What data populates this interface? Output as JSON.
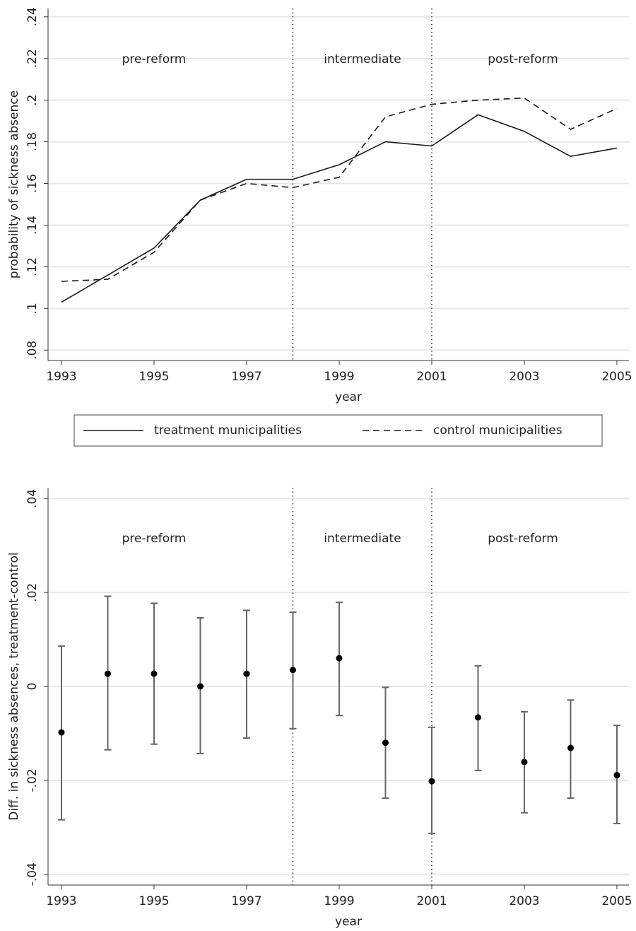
{
  "chart_data": [
    {
      "type": "line",
      "x_label": "year",
      "y_label": "probability of sickness absence",
      "x": [
        1993,
        1994,
        1995,
        1996,
        1997,
        1998,
        1999,
        2000,
        2001,
        2002,
        2003,
        2004,
        2005
      ],
      "series": [
        {
          "name": "treatment municipalities",
          "color": "#1a1a1a",
          "linestyle": "solid",
          "values": [
            0.103,
            0.116,
            0.129,
            0.152,
            0.162,
            0.162,
            0.169,
            0.18,
            0.178,
            0.193,
            0.185,
            0.173,
            0.177
          ]
        },
        {
          "name": "control municipalities",
          "color": "#1a1a1a",
          "linestyle": "dashed",
          "values": [
            0.113,
            0.114,
            0.127,
            0.152,
            0.16,
            0.158,
            0.163,
            0.192,
            0.198,
            0.2,
            0.201,
            0.186,
            0.196
          ]
        }
      ],
      "xlim": [
        1992.71,
        2005.26
      ],
      "xticks": [
        1993,
        1995,
        1997,
        1999,
        2001,
        2003,
        2005
      ],
      "ylim": [
        0.075,
        0.244
      ],
      "yticks": [
        {
          "value": 0.08,
          "label": ".08"
        },
        {
          "value": 0.1,
          "label": ".1"
        },
        {
          "value": 0.12,
          "label": ".12"
        },
        {
          "value": 0.14,
          "label": ".14"
        },
        {
          "value": 0.16,
          "label": ".16"
        },
        {
          "value": 0.18,
          "label": ".18"
        },
        {
          "value": 0.2,
          "label": ".2"
        },
        {
          "value": 0.22,
          "label": ".22"
        },
        {
          "value": 0.24,
          "label": ".24"
        }
      ],
      "vlines": [
        1998,
        2001
      ],
      "annotations": [
        "pre-reform",
        "intermediate",
        "post-reform"
      ],
      "grid": true,
      "legend": "bottom"
    },
    {
      "type": "errorbar",
      "x_label": "year",
      "y_label": "Diff. in sickness absences, treatment-control",
      "x": [
        1993,
        1994,
        1995,
        1996,
        1997,
        1998,
        1999,
        2000,
        2001,
        2002,
        2003,
        2004,
        2005
      ],
      "color": "#000000",
      "bar_color": "#666666",
      "values": [
        -0.0098,
        0.0027,
        0.0027,
        0,
        0.0027,
        0.0035,
        0.006,
        -0.012,
        -0.0202,
        -0.0066,
        -0.0161,
        -0.0131,
        -0.0189
      ],
      "upper": [
        0.0086,
        0.0192,
        0.0177,
        0.0146,
        0.0162,
        0.0158,
        0.0179,
        -0.0002,
        -0.0087,
        0.0044,
        -0.0054,
        -0.0029,
        -0.0083
      ],
      "lower": [
        -0.0284,
        -0.0135,
        -0.0123,
        -0.0143,
        -0.011,
        -0.009,
        -0.0062,
        -0.0238,
        -0.0313,
        -0.0179,
        -0.0269,
        -0.0238,
        -0.0292
      ],
      "xlim": [
        1992.71,
        2005.26
      ],
      "xticks": [
        1993,
        1995,
        1997,
        1999,
        2001,
        2003,
        2005
      ],
      "ylim": [
        -0.0423,
        0.0423
      ],
      "yticks": [
        {
          "value": -0.04,
          "label": "-.04"
        },
        {
          "value": -0.02,
          "label": "-.02"
        },
        0,
        {
          "value": 0.02,
          "label": ".02"
        },
        {
          "value": 0.04,
          "label": ".04"
        }
      ],
      "vlines": [
        1998,
        2001
      ],
      "annotations": [
        "pre-reform",
        "intermediate",
        "post-reform"
      ],
      "grid": true
    }
  ]
}
